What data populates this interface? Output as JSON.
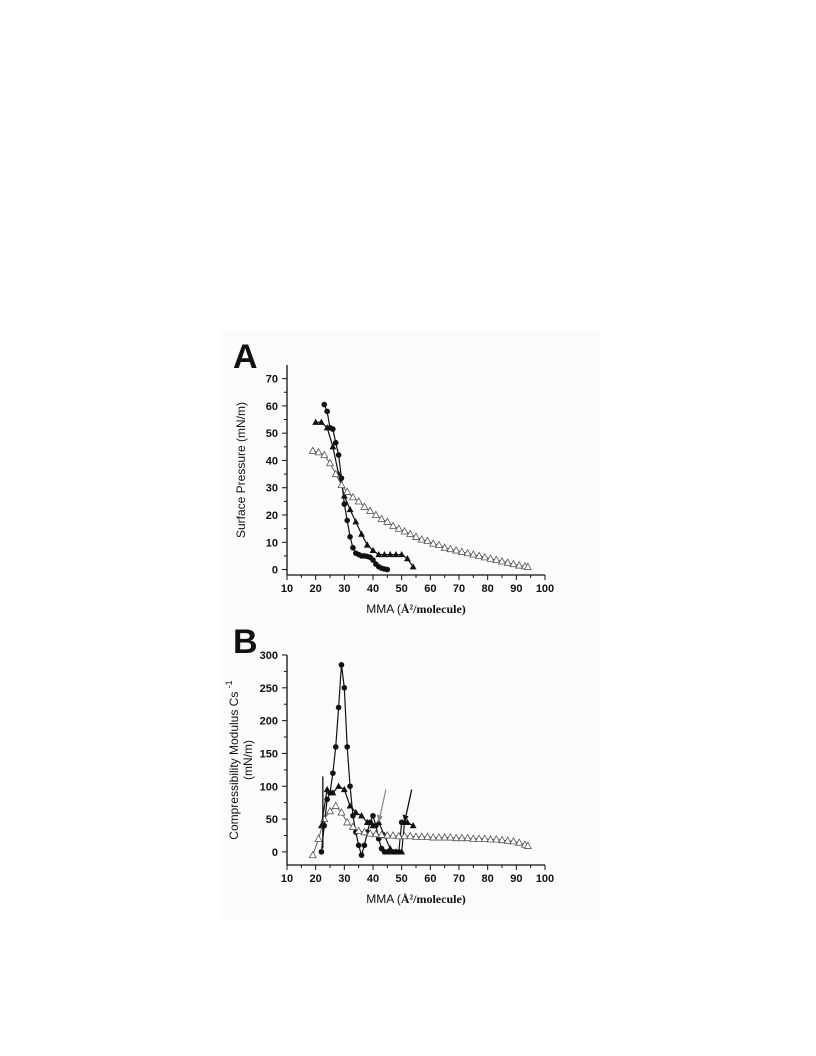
{
  "chart_data": [
    {
      "panel": "A",
      "type": "line",
      "xlabel_prefix": "MMA (",
      "xlabel_unit": "Å²/molecule)",
      "ylabel": "Surface Pressure (mN/m)",
      "xlim": [
        10,
        100
      ],
      "ylim": [
        -2,
        75
      ],
      "xticks": [
        10,
        20,
        30,
        40,
        50,
        60,
        70,
        80,
        90,
        100
      ],
      "yticks": [
        0,
        10,
        20,
        30,
        40,
        50,
        60,
        70
      ],
      "grid": false,
      "series": [
        {
          "marker": "filled-circle",
          "color": "#111111",
          "points": [
            [
              23,
              60.5
            ],
            [
              24,
              58
            ],
            [
              25,
              52
            ],
            [
              26,
              51.5
            ],
            [
              27,
              46.5
            ],
            [
              28,
              42
            ],
            [
              29,
              33.5
            ],
            [
              30,
              24
            ],
            [
              31,
              18
            ],
            [
              32,
              12
            ],
            [
              33,
              8
            ],
            [
              34,
              6
            ],
            [
              35,
              5.5
            ],
            [
              36,
              5
            ],
            [
              37,
              5
            ],
            [
              38,
              4.8
            ],
            [
              39,
              4.5
            ],
            [
              40,
              3.5
            ],
            [
              41,
              2
            ],
            [
              42,
              1
            ],
            [
              43,
              0.5
            ],
            [
              44,
              0.2
            ],
            [
              45,
              0
            ]
          ]
        },
        {
          "marker": "filled-triangle",
          "color": "#111111",
          "points": [
            [
              20,
              54
            ],
            [
              22,
              54
            ],
            [
              24,
              52
            ],
            [
              26,
              45
            ],
            [
              28,
              35
            ],
            [
              30,
              27
            ],
            [
              32,
              22
            ],
            [
              34,
              17.5
            ],
            [
              36,
              13
            ],
            [
              38,
              9
            ],
            [
              40,
              7
            ],
            [
              42,
              5.5
            ],
            [
              44,
              5.5
            ],
            [
              46,
              5.5
            ],
            [
              48,
              5.5
            ],
            [
              50,
              5.5
            ],
            [
              52,
              4
            ],
            [
              54,
              1
            ]
          ]
        },
        {
          "marker": "open-triangle",
          "color": "#555555",
          "points": [
            [
              19,
              43.5
            ],
            [
              21,
              43
            ],
            [
              23,
              42
            ],
            [
              25,
              39
            ],
            [
              27,
              35
            ],
            [
              29,
              31
            ],
            [
              31,
              28.5
            ],
            [
              33,
              26.5
            ],
            [
              35,
              25
            ],
            [
              37,
              23
            ],
            [
              39,
              21.5
            ],
            [
              41,
              20
            ],
            [
              43,
              18.5
            ],
            [
              45,
              17.5
            ],
            [
              47,
              16
            ],
            [
              49,
              15
            ],
            [
              51,
              14
            ],
            [
              53,
              13
            ],
            [
              55,
              12
            ],
            [
              57,
              11
            ],
            [
              59,
              10.5
            ],
            [
              61,
              9.5
            ],
            [
              63,
              9
            ],
            [
              65,
              8
            ],
            [
              67,
              7.5
            ],
            [
              69,
              7
            ],
            [
              71,
              6.5
            ],
            [
              73,
              6
            ],
            [
              75,
              5.5
            ],
            [
              77,
              5
            ],
            [
              79,
              4.5
            ],
            [
              81,
              4
            ],
            [
              83,
              3.5
            ],
            [
              85,
              3
            ],
            [
              87,
              2.5
            ],
            [
              89,
              2
            ],
            [
              91,
              1.5
            ],
            [
              93,
              1.2
            ],
            [
              94,
              1
            ]
          ]
        }
      ]
    },
    {
      "panel": "B",
      "type": "line",
      "xlabel_prefix": "MMA (",
      "xlabel_unit": "Å²/molecule)",
      "ylabel_line1": "Compressibility Modulus Cs",
      "ylabel_sup": "-1",
      "ylabel_line2": "(mN/m)",
      "xlim": [
        10,
        100
      ],
      "ylim": [
        -20,
        300
      ],
      "xticks": [
        10,
        20,
        30,
        40,
        50,
        60,
        70,
        80,
        90,
        100
      ],
      "yticks": [
        0,
        50,
        100,
        150,
        200,
        250,
        300
      ],
      "grid": false,
      "series": [
        {
          "marker": "filled-circle",
          "color": "#111111",
          "points": [
            [
              22,
              0
            ],
            [
              23,
              40
            ],
            [
              24,
              80
            ],
            [
              25,
              90
            ],
            [
              26,
              120
            ],
            [
              27,
              160
            ],
            [
              28,
              220
            ],
            [
              29,
              285
            ],
            [
              30,
              250
            ],
            [
              31,
              160
            ],
            [
              32,
              100
            ],
            [
              33,
              55
            ],
            [
              34,
              30
            ],
            [
              35,
              10
            ],
            [
              36,
              -5
            ],
            [
              37,
              10
            ],
            [
              38,
              30
            ],
            [
              39,
              45
            ],
            [
              40,
              55
            ],
            [
              41,
              40
            ],
            [
              42,
              20
            ],
            [
              43,
              5
            ],
            [
              44,
              0
            ],
            [
              45,
              0
            ],
            [
              46,
              0
            ],
            [
              47,
              0
            ],
            [
              48,
              0
            ],
            [
              49,
              0
            ],
            [
              50,
              45
            ]
          ]
        },
        {
          "marker": "filled-triangle",
          "color": "#111111",
          "points": [
            [
              22,
              40
            ],
            [
              24,
              95
            ],
            [
              26,
              90
            ],
            [
              28,
              100
            ],
            [
              30,
              95
            ],
            [
              32,
              70
            ],
            [
              34,
              60
            ],
            [
              36,
              55
            ],
            [
              38,
              45
            ],
            [
              40,
              40
            ],
            [
              42,
              45
            ],
            [
              44,
              25
            ],
            [
              46,
              5
            ],
            [
              48,
              0
            ],
            [
              50,
              0
            ],
            [
              51,
              45
            ],
            [
              52,
              45
            ],
            [
              54,
              40
            ]
          ]
        },
        {
          "marker": "open-triangle",
          "color": "#555555",
          "points": [
            [
              19,
              -5
            ],
            [
              21,
              20
            ],
            [
              23,
              50
            ],
            [
              25,
              62
            ],
            [
              27,
              70
            ],
            [
              29,
              60
            ],
            [
              31,
              45
            ],
            [
              33,
              38
            ],
            [
              35,
              32
            ],
            [
              37,
              30
            ],
            [
              39,
              28
            ],
            [
              41,
              27
            ],
            [
              43,
              26
            ],
            [
              45,
              25
            ],
            [
              47,
              25
            ],
            [
              49,
              24
            ],
            [
              51,
              24
            ],
            [
              53,
              24
            ],
            [
              55,
              23
            ],
            [
              57,
              23
            ],
            [
              59,
              23
            ],
            [
              61,
              22
            ],
            [
              63,
              22
            ],
            [
              65,
              22
            ],
            [
              67,
              22
            ],
            [
              69,
              21
            ],
            [
              71,
              21
            ],
            [
              73,
              21
            ],
            [
              75,
              20
            ],
            [
              77,
              20
            ],
            [
              79,
              20
            ],
            [
              81,
              19
            ],
            [
              83,
              19
            ],
            [
              85,
              18
            ],
            [
              87,
              17
            ],
            [
              89,
              16
            ],
            [
              91,
              14
            ],
            [
              93,
              11
            ],
            [
              94,
              9
            ]
          ]
        }
      ]
    }
  ]
}
